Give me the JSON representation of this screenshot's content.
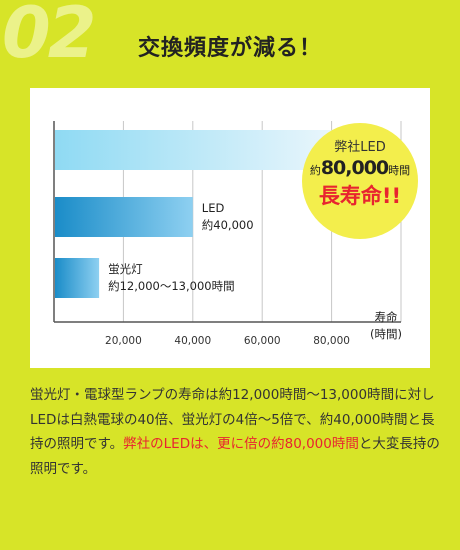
{
  "header": {
    "step": "02",
    "title": "交換頻度が減る！"
  },
  "chart_data": {
    "type": "bar",
    "orientation": "horizontal",
    "categories": [
      "弊社LED",
      "LED",
      "蛍光灯"
    ],
    "bar_labels": [
      null,
      [
        "LED",
        "約40,000"
      ],
      [
        "蛍光灯",
        "約12,000〜13,000時間"
      ]
    ],
    "values": [
      80000,
      40000,
      13000
    ],
    "x_ticks": [
      20000,
      40000,
      60000,
      80000
    ],
    "x_tick_labels": [
      "20,000",
      "40,000",
      "60,000",
      "80,000"
    ],
    "xlabel": [
      "寿命",
      "(時間)"
    ],
    "xlim": [
      0,
      100000
    ],
    "grid": true,
    "colors": {
      "bar_top_start": "#8fdaf3",
      "bar_top_end": "#e9f6fc",
      "bar_mid_start": "#1a8cc8",
      "bar_mid_end": "#8ed0f1",
      "bar_low_start": "#1a8cc8",
      "bar_low_end": "#8ed0f1",
      "accent_red": "#e8242f",
      "page_bg": "#d7e428",
      "badge_bg": "#f3ee4c"
    }
  },
  "badge": {
    "line1": "弊社LED",
    "prefix": "約",
    "amount": "80,000",
    "suffix": "時間",
    "line3": "長寿命!!"
  },
  "description": {
    "part1": "蛍光灯・電球型ランプの寿命は約12,000時間〜13,000時間に対しLEDは白熱電球の40倍、蛍光灯の4倍〜5倍で、約40,000時間と長持の照明です。",
    "part2_red": "弊社のLEDは、更に倍の約80,000時間",
    "part3": "と大変長持の照明です。"
  }
}
